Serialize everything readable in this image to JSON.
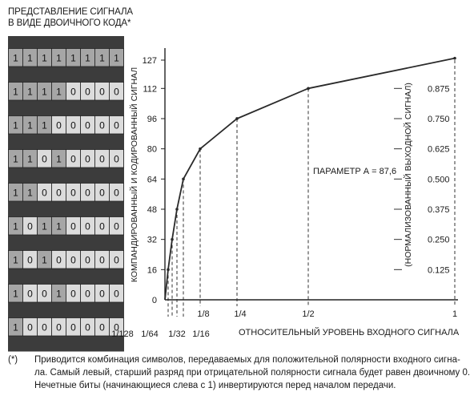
{
  "header": {
    "line1": "ПРЕДСТАВЛЕНИЕ СИГНАЛА",
    "line2": "В ВИДЕ ДВОИЧНОГО КОДА*"
  },
  "binary_table": {
    "rows": [
      [
        "1",
        "1",
        "1",
        "1",
        "1",
        "1",
        "1",
        "1"
      ],
      [
        "1",
        "1",
        "1",
        "1",
        "0",
        "0",
        "0",
        "0"
      ],
      [
        "1",
        "1",
        "1",
        "0",
        "0",
        "0",
        "0",
        "0"
      ],
      [
        "1",
        "1",
        "0",
        "1",
        "0",
        "0",
        "0",
        "0"
      ],
      [
        "1",
        "1",
        "0",
        "0",
        "0",
        "0",
        "0",
        "0"
      ],
      [
        "1",
        "0",
        "1",
        "1",
        "0",
        "0",
        "0",
        "0"
      ],
      [
        "1",
        "0",
        "1",
        "0",
        "0",
        "0",
        "0",
        "0"
      ],
      [
        "1",
        "0",
        "0",
        "1",
        "0",
        "0",
        "0",
        "0"
      ],
      [
        "1",
        "0",
        "0",
        "0",
        "0",
        "0",
        "0",
        "0"
      ]
    ],
    "colors": {
      "one": "#a6a6a6",
      "zero": "#dcdcdc",
      "frame": "#3c3c3c",
      "border": "#222222"
    }
  },
  "chart_data": {
    "type": "line",
    "xlabel": "ОТНОСИТЕЛЬНЫЙ УРОВЕНЬ ВХОДНОГО СИГНАЛА",
    "ylabel": "КОМПАНДИРОВАННЫЙ И КОДИРОВАННЫЙ СИГНАЛ",
    "y2label": "(НОРМАЛИЗОВАННЫЙ ВЫХОДНОЙ СИГНАЛ)",
    "annotation": "ПАРАМЕТР А = 87,6",
    "x_ticks": [
      {
        "value": 0.0078125,
        "label": "1/128"
      },
      {
        "value": 0.015625,
        "label": "1/64"
      },
      {
        "value": 0.03125,
        "label": "1/32"
      },
      {
        "value": 0.0625,
        "label": "1/16"
      },
      {
        "value": 0.125,
        "label": "1/8"
      },
      {
        "value": 0.25,
        "label": "1/4"
      },
      {
        "value": 0.5,
        "label": "1/2"
      },
      {
        "value": 1,
        "label": "1"
      }
    ],
    "y_ticks": [
      {
        "value": 0,
        "label": "0"
      },
      {
        "value": 16,
        "label": "16"
      },
      {
        "value": 32,
        "label": "32"
      },
      {
        "value": 48,
        "label": "48"
      },
      {
        "value": 64,
        "label": "64"
      },
      {
        "value": 80,
        "label": "80"
      },
      {
        "value": 96,
        "label": "96"
      },
      {
        "value": 112,
        "label": "112"
      },
      {
        "value": 127,
        "label": "127"
      }
    ],
    "y2_ticks": [
      {
        "value": 16,
        "label": "0.125"
      },
      {
        "value": 32,
        "label": "0.250"
      },
      {
        "value": 48,
        "label": "0.375"
      },
      {
        "value": 64,
        "label": "0.500"
      },
      {
        "value": 80,
        "label": "0.625"
      },
      {
        "value": 96,
        "label": "0.750"
      },
      {
        "value": 112,
        "label": "0.875"
      }
    ],
    "xlim": [
      0,
      1
    ],
    "ylim": [
      0,
      127
    ],
    "series": [
      {
        "x": [
          0,
          0.0078125,
          0.015625,
          0.03125,
          0.0625,
          0.125,
          0.25,
          0.5,
          1
        ],
        "y": [
          0,
          16,
          32,
          48,
          64,
          80,
          96,
          112,
          128
        ]
      }
    ],
    "grid": false,
    "line_color": "#2a2a2a"
  },
  "footnote": {
    "mark": "(*)",
    "lines": [
      "Приводится комбинация символов, передаваемых для положительной полярности входного сигна-",
      "ла. Самый левый, старший разряд при отрицательной полярности сигнала будет равен двоичному 0.",
      "Нечетные биты (начинающиеся слева с 1) инвертируются перед началом передачи."
    ]
  }
}
